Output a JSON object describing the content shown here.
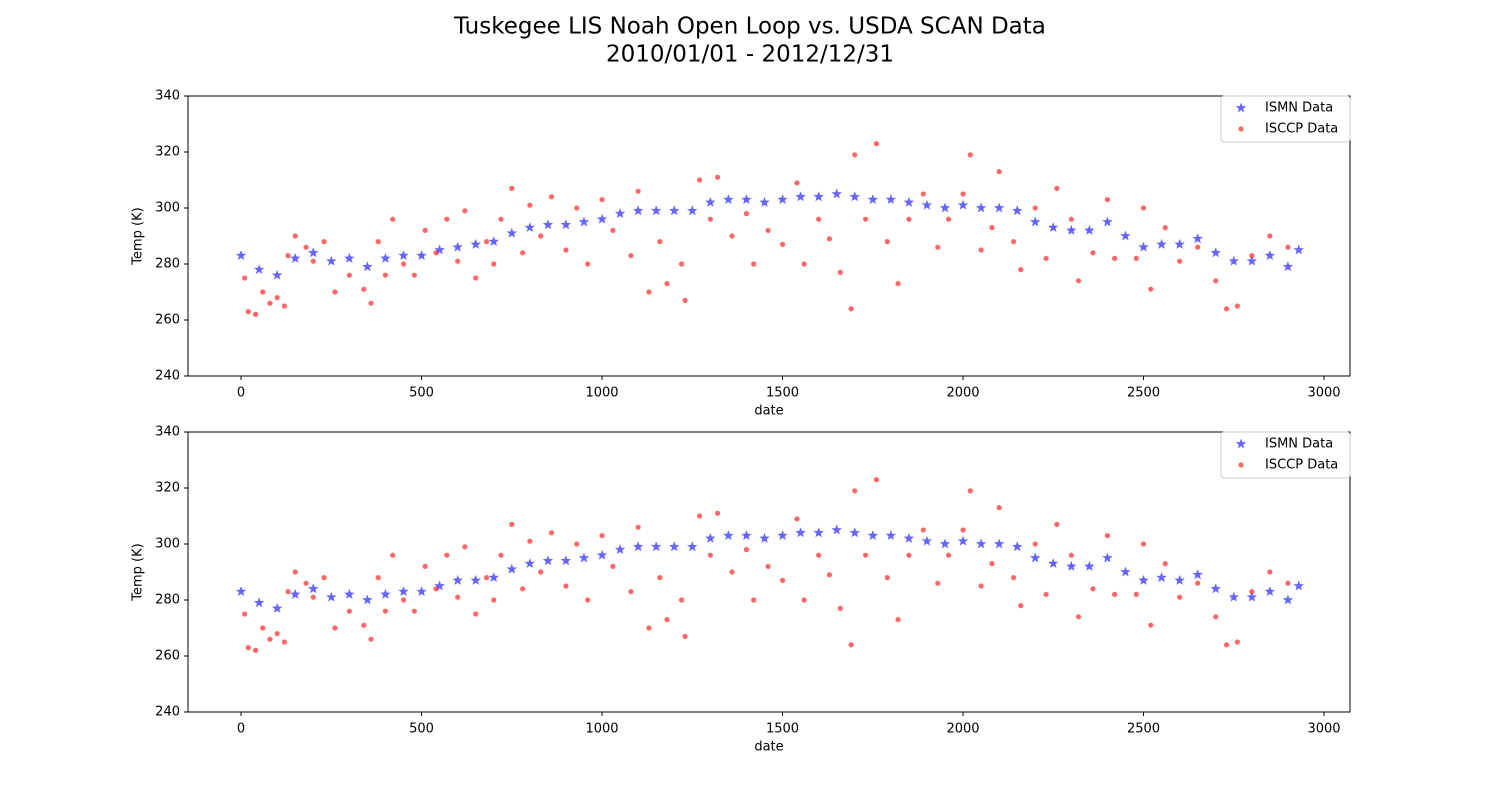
{
  "title": "Tuskegee LIS Noah Open Loop vs. USDA SCAN Data",
  "subtitle": "2010/01/01 - 2012/12/31",
  "chart_data": [
    {
      "type": "scatter",
      "xlabel": "date",
      "ylabel": "Temp (K)",
      "xlim": [
        -147,
        3072
      ],
      "ylim": [
        240,
        340
      ],
      "xticks": [
        0,
        500,
        1000,
        1500,
        2000,
        2500,
        3000
      ],
      "yticks": [
        240,
        260,
        280,
        300,
        320,
        340
      ],
      "legend": "upper right",
      "alpha": 0.6,
      "series": [
        {
          "name": "ISMN Data",
          "color": "#0000ff",
          "marker": "star",
          "x": [
            0,
            50,
            100,
            150,
            200,
            250,
            300,
            350,
            400,
            450,
            500,
            550,
            600,
            650,
            700,
            750,
            800,
            850,
            900,
            950,
            1000,
            1050,
            1100,
            1150,
            1200,
            1250,
            1300,
            1350,
            1400,
            1450,
            1500,
            1550,
            1600,
            1650,
            1700,
            1750,
            1800,
            1850,
            1900,
            1950,
            2000,
            2050,
            2100,
            2150,
            2200,
            2250,
            2300,
            2350,
            2400,
            2450,
            2500,
            2550,
            2600,
            2650,
            2700,
            2750,
            2800,
            2850,
            2900,
            2930
          ],
          "values": [
            283,
            278,
            276,
            282,
            284,
            281,
            282,
            279,
            282,
            283,
            283,
            285,
            286,
            287,
            288,
            291,
            293,
            294,
            294,
            295,
            296,
            298,
            299,
            299,
            299,
            299,
            302,
            303,
            303,
            302,
            303,
            304,
            304,
            305,
            304,
            303,
            303,
            302,
            301,
            300,
            301,
            300,
            300,
            299,
            295,
            293,
            292,
            292,
            295,
            290,
            286,
            287,
            287,
            289,
            284,
            281,
            281,
            283,
            279,
            285
          ]
        },
        {
          "name": "ISCCP Data",
          "color": "#ff0000",
          "marker": "circle",
          "x": [
            10,
            20,
            40,
            60,
            80,
            100,
            120,
            130,
            150,
            180,
            200,
            230,
            260,
            300,
            340,
            360,
            380,
            400,
            420,
            450,
            480,
            510,
            540,
            570,
            600,
            620,
            650,
            680,
            700,
            720,
            750,
            780,
            800,
            830,
            860,
            900,
            930,
            960,
            1000,
            1030,
            1080,
            1100,
            1130,
            1160,
            1180,
            1220,
            1230,
            1270,
            1300,
            1320,
            1360,
            1400,
            1420,
            1460,
            1500,
            1540,
            1560,
            1600,
            1630,
            1660,
            1690,
            1700,
            1730,
            1760,
            1790,
            1820,
            1850,
            1890,
            1930,
            1960,
            2000,
            2020,
            2050,
            2080,
            2100,
            2140,
            2160,
            2200,
            2230,
            2260,
            2300,
            2320,
            2360,
            2400,
            2420,
            2480,
            2500,
            2520,
            2560,
            2600,
            2650,
            2700,
            2730,
            2760,
            2800,
            2850,
            2900
          ],
          "values": [
            275,
            263,
            262,
            270,
            266,
            268,
            265,
            283,
            290,
            286,
            281,
            288,
            270,
            276,
            271,
            266,
            288,
            276,
            296,
            280,
            276,
            292,
            284,
            296,
            281,
            299,
            275,
            288,
            280,
            296,
            307,
            284,
            301,
            290,
            304,
            285,
            300,
            280,
            303,
            292,
            283,
            306,
            270,
            288,
            273,
            280,
            267,
            310,
            296,
            311,
            290,
            298,
            280,
            292,
            287,
            309,
            280,
            296,
            289,
            277,
            264,
            319,
            296,
            323,
            288,
            273,
            296,
            305,
            286,
            296,
            305,
            319,
            285,
            293,
            313,
            288,
            278,
            300,
            282,
            307,
            296,
            274,
            284,
            303,
            282,
            282,
            300,
            271,
            293,
            281,
            286,
            274,
            264,
            265,
            283,
            290,
            286
          ]
        }
      ]
    },
    {
      "type": "scatter",
      "xlabel": "date",
      "ylabel": "Temp (K)",
      "xlim": [
        -147,
        3072
      ],
      "ylim": [
        240,
        340
      ],
      "xticks": [
        0,
        500,
        1000,
        1500,
        2000,
        2500,
        3000
      ],
      "yticks": [
        240,
        260,
        280,
        300,
        320,
        340
      ],
      "legend": "upper right",
      "alpha": 0.6,
      "series": [
        {
          "name": "ISMN Data",
          "color": "#0000ff",
          "marker": "star",
          "x": [
            0,
            50,
            100,
            150,
            200,
            250,
            300,
            350,
            400,
            450,
            500,
            550,
            600,
            650,
            700,
            750,
            800,
            850,
            900,
            950,
            1000,
            1050,
            1100,
            1150,
            1200,
            1250,
            1300,
            1350,
            1400,
            1450,
            1500,
            1550,
            1600,
            1650,
            1700,
            1750,
            1800,
            1850,
            1900,
            1950,
            2000,
            2050,
            2100,
            2150,
            2200,
            2250,
            2300,
            2350,
            2400,
            2450,
            2500,
            2550,
            2600,
            2650,
            2700,
            2750,
            2800,
            2850,
            2900,
            2930
          ],
          "values": [
            283,
            279,
            277,
            282,
            284,
            281,
            282,
            280,
            282,
            283,
            283,
            285,
            287,
            287,
            288,
            291,
            293,
            294,
            294,
            295,
            296,
            298,
            299,
            299,
            299,
            299,
            302,
            303,
            303,
            302,
            303,
            304,
            304,
            305,
            304,
            303,
            303,
            302,
            301,
            300,
            301,
            300,
            300,
            299,
            295,
            293,
            292,
            292,
            295,
            290,
            287,
            288,
            287,
            289,
            284,
            281,
            281,
            283,
            280,
            285
          ]
        },
        {
          "name": "ISCCP Data",
          "color": "#ff0000",
          "marker": "circle",
          "x": [
            10,
            20,
            40,
            60,
            80,
            100,
            120,
            130,
            150,
            180,
            200,
            230,
            260,
            300,
            340,
            360,
            380,
            400,
            420,
            450,
            480,
            510,
            540,
            570,
            600,
            620,
            650,
            680,
            700,
            720,
            750,
            780,
            800,
            830,
            860,
            900,
            930,
            960,
            1000,
            1030,
            1080,
            1100,
            1130,
            1160,
            1180,
            1220,
            1230,
            1270,
            1300,
            1320,
            1360,
            1400,
            1420,
            1460,
            1500,
            1540,
            1560,
            1600,
            1630,
            1660,
            1690,
            1700,
            1730,
            1760,
            1790,
            1820,
            1850,
            1890,
            1930,
            1960,
            2000,
            2020,
            2050,
            2080,
            2100,
            2140,
            2160,
            2200,
            2230,
            2260,
            2300,
            2320,
            2360,
            2400,
            2420,
            2480,
            2500,
            2520,
            2560,
            2600,
            2650,
            2700,
            2730,
            2760,
            2800,
            2850,
            2900
          ],
          "values": [
            275,
            263,
            262,
            270,
            266,
            268,
            265,
            283,
            290,
            286,
            281,
            288,
            270,
            276,
            271,
            266,
            288,
            276,
            296,
            280,
            276,
            292,
            284,
            296,
            281,
            299,
            275,
            288,
            280,
            296,
            307,
            284,
            301,
            290,
            304,
            285,
            300,
            280,
            303,
            292,
            283,
            306,
            270,
            288,
            273,
            280,
            267,
            310,
            296,
            311,
            290,
            298,
            280,
            292,
            287,
            309,
            280,
            296,
            289,
            277,
            264,
            319,
            296,
            323,
            288,
            273,
            296,
            305,
            286,
            296,
            305,
            319,
            285,
            293,
            313,
            288,
            278,
            300,
            282,
            307,
            296,
            274,
            284,
            303,
            282,
            282,
            300,
            271,
            293,
            281,
            286,
            274,
            264,
            265,
            283,
            290,
            286
          ]
        }
      ]
    }
  ]
}
